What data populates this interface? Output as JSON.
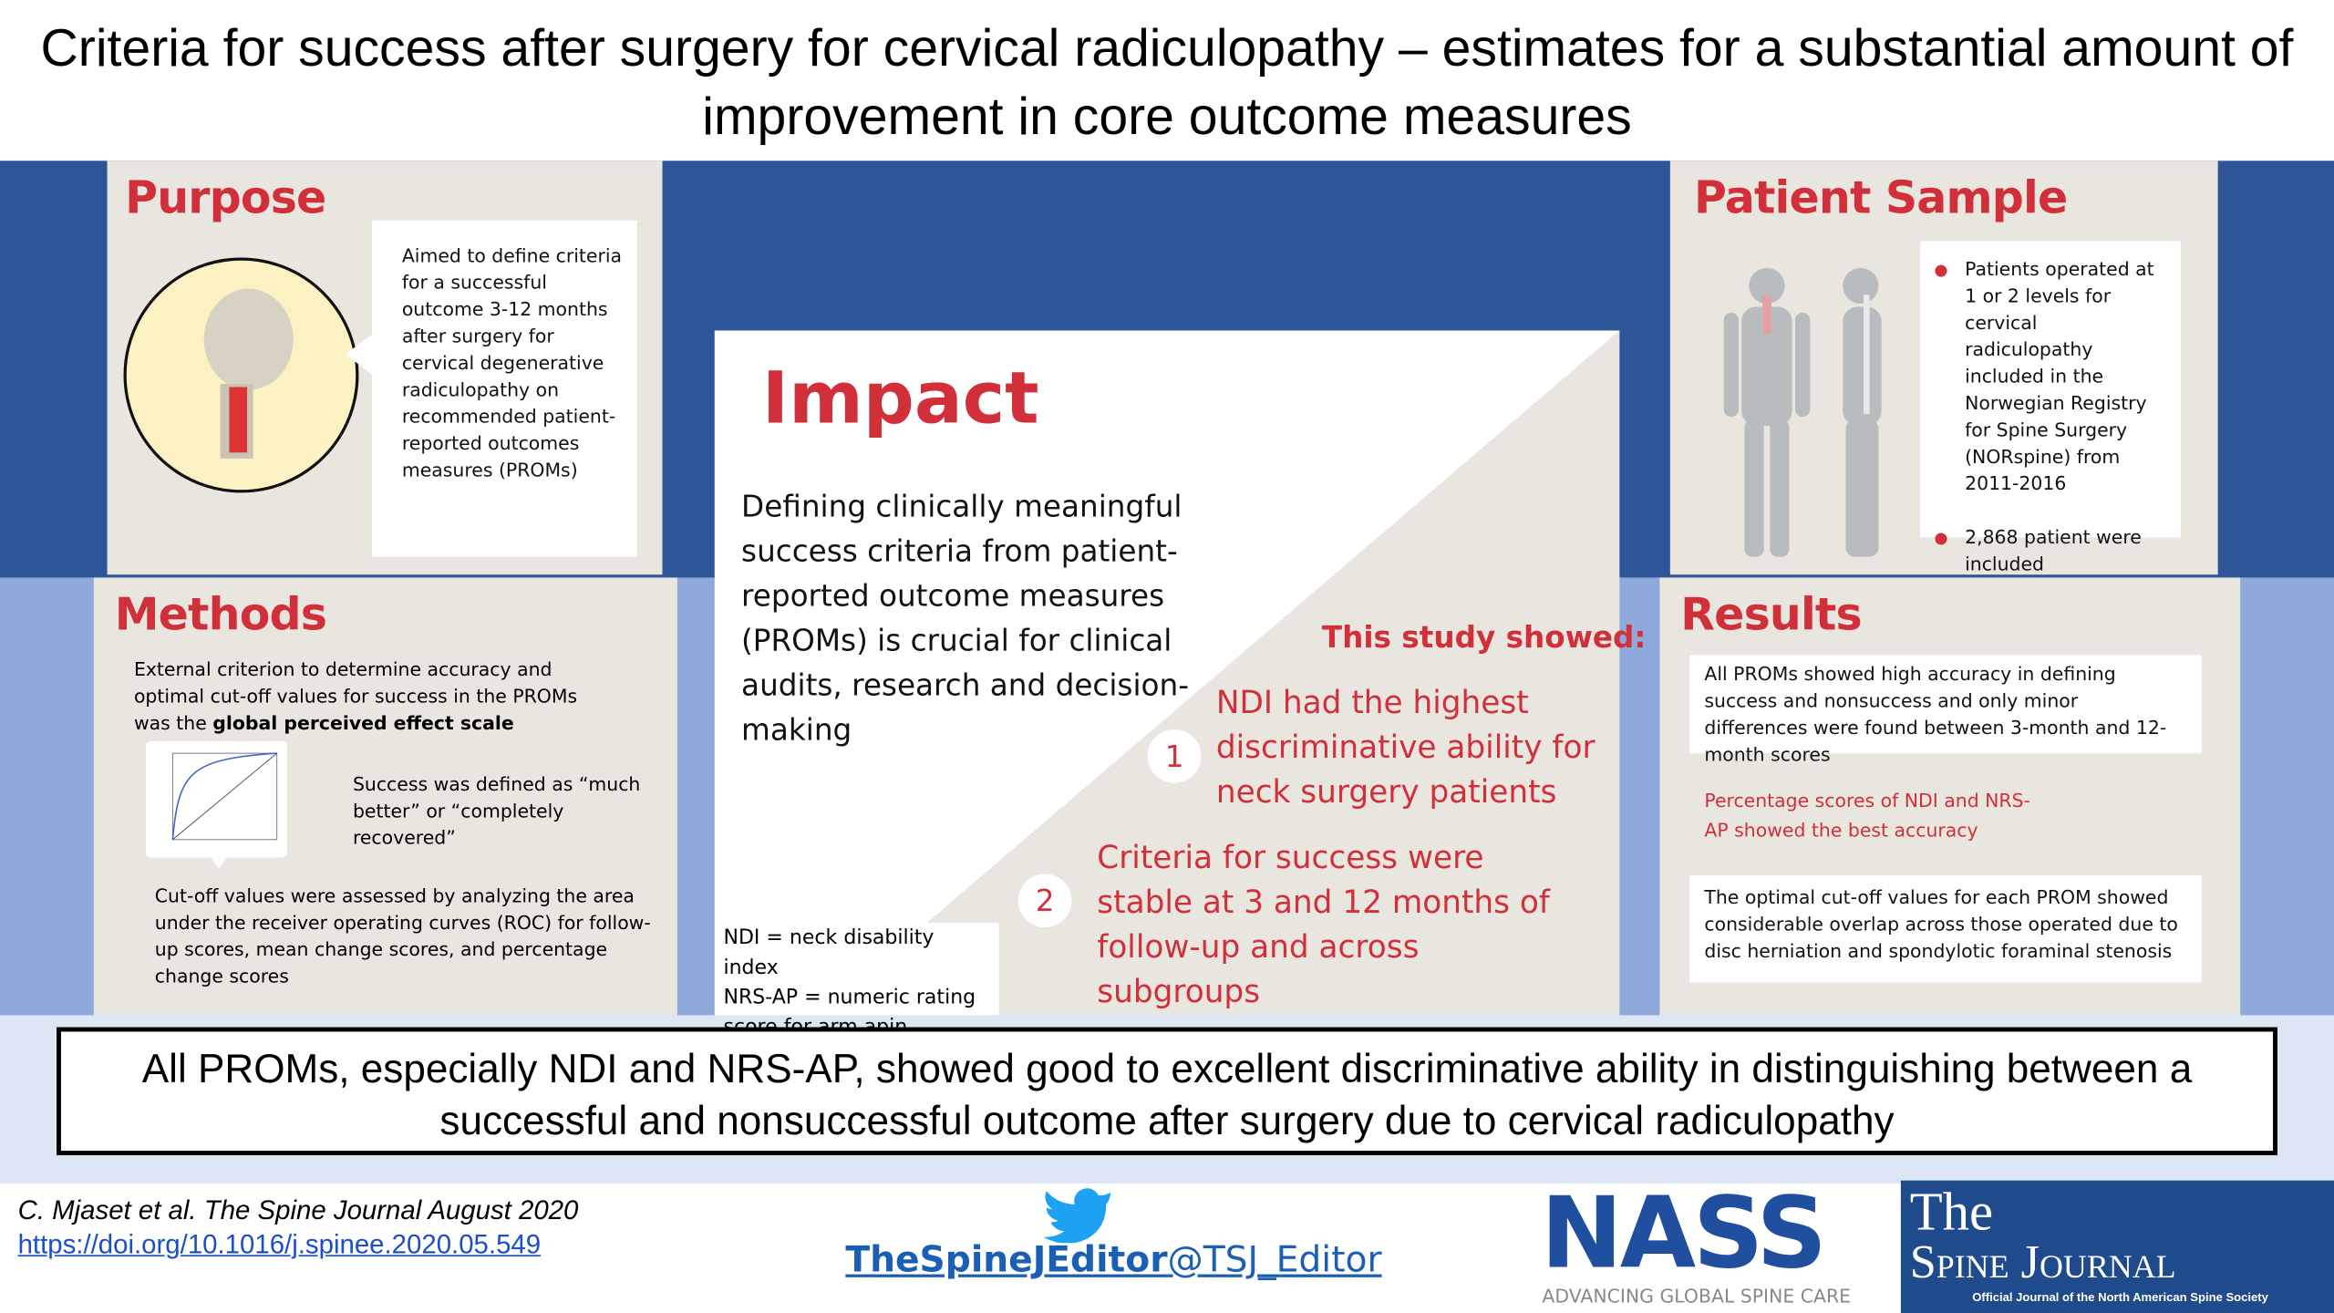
{
  "header": {
    "title": "Criteria for success after surgery for cervical radiculopathy – estimates for a substantial amount of improvement in core outcome measures"
  },
  "purpose": {
    "heading": "Purpose",
    "text": "Aimed to define criteria for a successful outcome 3-12 months after surgery for cervical degenerative radiculopathy on recommended patient-reported outcomes measures (PROMs)"
  },
  "patient_sample": {
    "heading": "Patient Sample",
    "items": [
      "Patients operated at 1 or 2 levels for cervical radiculopathy included in the Norwegian Registry for Spine Surgery (NORspine) from 2011-2016",
      "2,868 patient were included"
    ]
  },
  "methods": {
    "heading": "Methods",
    "intro": "External criterion to determine accuracy and optimal cut-off values for success in the PROMs was the",
    "intro_bold": "global perceived effect scale",
    "success": "Success was defined as “much better” or “completely recovered”",
    "cutoff": "Cut-off values were assessed by analyzing the area under the receiver operating curves (ROC) for follow-up scores, mean change scores, and percentage change scores"
  },
  "impact": {
    "heading": "Impact",
    "text": "Defining clinically meaningful success criteria from patient-reported outcome measures (PROMs) is crucial for clinical audits, research and decision-making",
    "study_heading": "This study showed:",
    "findings": [
      {
        "number": "1",
        "text": "NDI had the highest discriminative ability for neck surgery patients"
      },
      {
        "number": "2",
        "text": "Criteria for success were stable at 3 and 12 months of follow-up and across subgroups"
      }
    ],
    "abbreviations": [
      "NDI = neck disability index",
      "NRS-AP = numeric rating score for arm apin"
    ]
  },
  "results": {
    "heading": "Results",
    "items": [
      "All PROMs showed high accuracy in defining success and nonsuccess and only minor differences were found between 3-month and 12-month scores",
      "Percentage scores of NDI and NRS-AP showed the best accuracy",
      "The optimal cut-off values for each PROM showed considerable overlap across those operated due to disc herniation and spondylotic foraminal stenosis"
    ]
  },
  "conclusion": {
    "text": "All PROMs, especially NDI and NRS-AP, showed good to excellent discriminative ability in distinguishing between a successful and nonsuccessful outcome after surgery due to cervical radiculopathy"
  },
  "footer": {
    "citation": "C. Mjaset et al. The Spine Journal August 2020",
    "doi": "https://doi.org/10.1016/j.spinee.2020.05.549",
    "twitter_bold": "TheSpineJEditor",
    "twitter_handle": "@TSJ_Editor",
    "nass": "NASS",
    "nass_tagline": "ADVANCING GLOBAL SPINE CARE",
    "journal_the": "The",
    "journal_name": "Spine Journal",
    "journal_tagline": "Official Journal of the North American Spine Society"
  }
}
